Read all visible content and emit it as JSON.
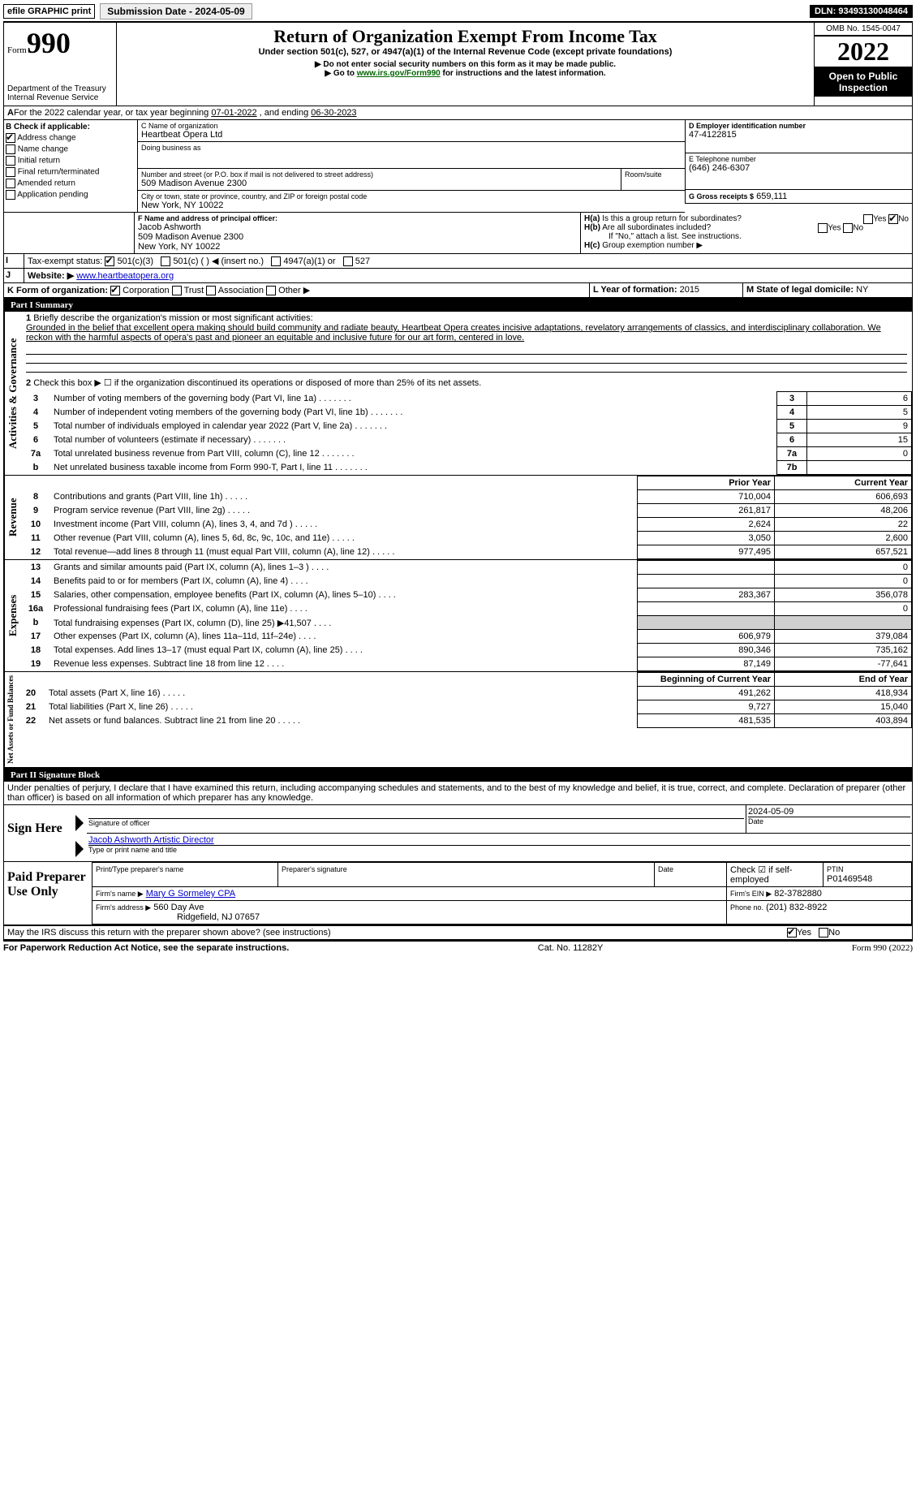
{
  "topbar": {
    "efile": "efile GRAPHIC print",
    "submission_label": "Submission Date - 2024-05-09",
    "dln_label": "DLN: 93493130048464"
  },
  "header": {
    "form_word": "Form",
    "form_num": "990",
    "title": "Return of Organization Exempt From Income Tax",
    "subtitle": "Under section 501(c), 527, or 4947(a)(1) of the Internal Revenue Code (except private foundations)",
    "warn": "▶ Do not enter social security numbers on this form as it may be made public.",
    "goto_pre": "▶ Go to ",
    "goto_link": "www.irs.gov/Form990",
    "goto_post": " for instructions and the latest information.",
    "dept1": "Department of the Treasury",
    "dept2": "Internal Revenue Service",
    "omb": "OMB No. 1545-0047",
    "year": "2022",
    "open": "Open to Public Inspection"
  },
  "lineA": {
    "text_pre": "For the 2022 calendar year, or tax year beginning ",
    "begin": "07-01-2022",
    "mid": " , and ending ",
    "end": "06-30-2023"
  },
  "boxB": {
    "label": "B Check if applicable:",
    "items": [
      "Address change",
      "Name change",
      "Initial return",
      "Final return/terminated",
      "Amended return",
      "Application pending"
    ],
    "checked_index": 0
  },
  "boxC": {
    "label": "C Name of organization",
    "name": "Heartbeat Opera Ltd",
    "dba_label": "Doing business as",
    "dba": "",
    "street_label": "Number and street (or P.O. box if mail is not delivered to street address)",
    "room_label": "Room/suite",
    "street": "509 Madison Avenue 2300",
    "city_label": "City or town, state or province, country, and ZIP or foreign postal code",
    "city": "New York, NY  10022"
  },
  "boxD": {
    "label": "D Employer identification number",
    "value": "47-4122815"
  },
  "boxE": {
    "label": "E Telephone number",
    "value": "(646) 246-6307"
  },
  "boxG": {
    "label": "G Gross receipts $",
    "value": "659,111"
  },
  "boxF": {
    "label": "F  Name and address of principal officer:",
    "name": "Jacob Ashworth",
    "addr1": "509 Madison Avenue 2300",
    "addr2": "New York, NY  10022"
  },
  "boxH": {
    "a": "Is this a group return for subordinates?",
    "a_yes": "Yes",
    "a_no": "No",
    "b": "Are all subordinates included?",
    "b_note": "If \"No,\" attach a list. See instructions.",
    "c": "Group exemption number ▶"
  },
  "boxI": {
    "label": "Tax-exempt status:",
    "opts": [
      "501(c)(3)",
      "501(c) (   ) ◀ (insert no.)",
      "4947(a)(1) or",
      "527"
    ]
  },
  "boxJ": {
    "label": "Website: ▶",
    "value": "www.heartbeatopera.org"
  },
  "boxK": {
    "label": "K Form of organization:",
    "opts": [
      "Corporation",
      "Trust",
      "Association",
      "Other ▶"
    ]
  },
  "boxL": {
    "label": "L Year of formation:",
    "value": "2015"
  },
  "boxM": {
    "label": "M State of legal domicile:",
    "value": "NY"
  },
  "part1": {
    "title": "Part I    Summary",
    "q1": "Briefly describe the organization's mission or most significant activities:",
    "mission": "Grounded in the belief that excellent opera making should build community and radiate beauty, Heartbeat Opera creates incisive adaptations, revelatory arrangements of classics, and interdisciplinary collaboration. We reckon with the harmful aspects of opera's past and pioneer an equitable and inclusive future for our art form, centered in love.",
    "q2": "Check this box ▶ ☐  if the organization discontinued its operations or disposed of more than 25% of its net assets.",
    "lines_gov": [
      {
        "n": "3",
        "t": "Number of voting members of the governing body (Part VI, line 1a)",
        "box": "3",
        "v": "6"
      },
      {
        "n": "4",
        "t": "Number of independent voting members of the governing body (Part VI, line 1b)",
        "box": "4",
        "v": "5"
      },
      {
        "n": "5",
        "t": "Total number of individuals employed in calendar year 2022 (Part V, line 2a)",
        "box": "5",
        "v": "9"
      },
      {
        "n": "6",
        "t": "Total number of volunteers (estimate if necessary)",
        "box": "6",
        "v": "15"
      },
      {
        "n": "7a",
        "t": "Total unrelated business revenue from Part VIII, column (C), line 12",
        "box": "7a",
        "v": "0"
      },
      {
        "n": "b",
        "t": "Net unrelated business taxable income from Form 990-T, Part I, line 11",
        "box": "7b",
        "v": ""
      }
    ],
    "col_prior": "Prior Year",
    "col_curr": "Current Year",
    "rev": [
      {
        "n": "8",
        "t": "Contributions and grants (Part VIII, line 1h)",
        "p": "710,004",
        "c": "606,693"
      },
      {
        "n": "9",
        "t": "Program service revenue (Part VIII, line 2g)",
        "p": "261,817",
        "c": "48,206"
      },
      {
        "n": "10",
        "t": "Investment income (Part VIII, column (A), lines 3, 4, and 7d )",
        "p": "2,624",
        "c": "22"
      },
      {
        "n": "11",
        "t": "Other revenue (Part VIII, column (A), lines 5, 6d, 8c, 9c, 10c, and 11e)",
        "p": "3,050",
        "c": "2,600"
      },
      {
        "n": "12",
        "t": "Total revenue—add lines 8 through 11 (must equal Part VIII, column (A), line 12)",
        "p": "977,495",
        "c": "657,521"
      }
    ],
    "exp": [
      {
        "n": "13",
        "t": "Grants and similar amounts paid (Part IX, column (A), lines 1–3 )",
        "p": "",
        "c": "0"
      },
      {
        "n": "14",
        "t": "Benefits paid to or for members (Part IX, column (A), line 4)",
        "p": "",
        "c": "0"
      },
      {
        "n": "15",
        "t": "Salaries, other compensation, employee benefits (Part IX, column (A), lines 5–10)",
        "p": "283,367",
        "c": "356,078"
      },
      {
        "n": "16a",
        "t": "Professional fundraising fees (Part IX, column (A), line 11e)",
        "p": "",
        "c": "0"
      },
      {
        "n": "b",
        "t": "Total fundraising expenses (Part IX, column (D), line 25) ▶41,507",
        "p": "grey",
        "c": "grey"
      },
      {
        "n": "17",
        "t": "Other expenses (Part IX, column (A), lines 11a–11d, 11f–24e)",
        "p": "606,979",
        "c": "379,084"
      },
      {
        "n": "18",
        "t": "Total expenses. Add lines 13–17 (must equal Part IX, column (A), line 25)",
        "p": "890,346",
        "c": "735,162"
      },
      {
        "n": "19",
        "t": "Revenue less expenses. Subtract line 18 from line 12",
        "p": "87,149",
        "c": "-77,641"
      }
    ],
    "col_begin": "Beginning of Current Year",
    "col_end": "End of Year",
    "net": [
      {
        "n": "20",
        "t": "Total assets (Part X, line 16)",
        "p": "491,262",
        "c": "418,934"
      },
      {
        "n": "21",
        "t": "Total liabilities (Part X, line 26)",
        "p": "9,727",
        "c": "15,040"
      },
      {
        "n": "22",
        "t": "Net assets or fund balances. Subtract line 21 from line 20",
        "p": "481,535",
        "c": "403,894"
      }
    ],
    "vlabels": {
      "gov": "Activities & Governance",
      "rev": "Revenue",
      "exp": "Expenses",
      "net": "Net Assets or Fund Balances"
    }
  },
  "part2": {
    "title": "Part II    Signature Block",
    "decl": "Under penalties of perjury, I declare that I have examined this return, including accompanying schedules and statements, and to the best of my knowledge and belief, it is true, correct, and complete. Declaration of preparer (other than officer) is based on all information of which preparer has any knowledge.",
    "sign_here": "Sign Here",
    "sig_officer": "Signature of officer",
    "date": "Date",
    "sig_date": "2024-05-09",
    "officer_name": "Jacob Ashworth Artistic Director",
    "type_name": "Type or print name and title",
    "paid": "Paid Preparer Use Only",
    "pt_name_lbl": "Print/Type preparer's name",
    "pt_sig_lbl": "Preparer's signature",
    "pt_date_lbl": "Date",
    "check_if": "Check ☑ if self-employed",
    "ptin_lbl": "PTIN",
    "ptin": "P01469548",
    "firm_name_lbl": "Firm's name    ▶",
    "firm_name": "Mary G Sormeley CPA",
    "firm_ein_lbl": "Firm's EIN ▶",
    "firm_ein": "82-3782880",
    "firm_addr_lbl": "Firm's address ▶",
    "firm_addr": "560 Day Ave",
    "firm_city": "Ridgefield, NJ  07657",
    "phone_lbl": "Phone no.",
    "phone": "(201) 832-8922",
    "may_irs": "May the IRS discuss this return with the preparer shown above? (see instructions)",
    "yes": "Yes",
    "no": "No"
  },
  "footer": {
    "pra": "For Paperwork Reduction Act Notice, see the separate instructions.",
    "cat": "Cat. No. 11282Y",
    "form": "Form 990 (2022)"
  }
}
